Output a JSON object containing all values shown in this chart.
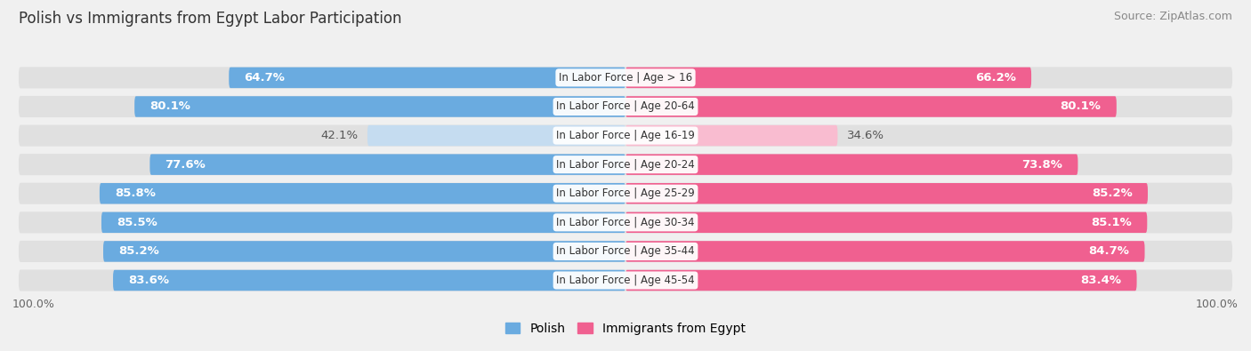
{
  "title": "Polish vs Immigrants from Egypt Labor Participation",
  "source": "Source: ZipAtlas.com",
  "categories": [
    "In Labor Force | Age > 16",
    "In Labor Force | Age 20-64",
    "In Labor Force | Age 16-19",
    "In Labor Force | Age 20-24",
    "In Labor Force | Age 25-29",
    "In Labor Force | Age 30-34",
    "In Labor Force | Age 35-44",
    "In Labor Force | Age 45-54"
  ],
  "polish_values": [
    64.7,
    80.1,
    42.1,
    77.6,
    85.8,
    85.5,
    85.2,
    83.6
  ],
  "egypt_values": [
    66.2,
    80.1,
    34.6,
    73.8,
    85.2,
    85.1,
    84.7,
    83.4
  ],
  "polish_color_high": "#6aabe0",
  "polish_color_low": "#c5dcf0",
  "egypt_color_high": "#f06090",
  "egypt_color_low": "#f9bcd0",
  "threshold": 60.0,
  "bg_color": "#f0f0f0",
  "row_bg_color": "#e0e0e0",
  "label_color_white": "#ffffff",
  "label_color_dark": "#555555",
  "legend_polish": "Polish",
  "legend_egypt": "Immigrants from Egypt",
  "max_val": 100.0,
  "title_fontsize": 12,
  "source_fontsize": 9,
  "label_fontsize": 9.5,
  "category_fontsize": 8.5
}
